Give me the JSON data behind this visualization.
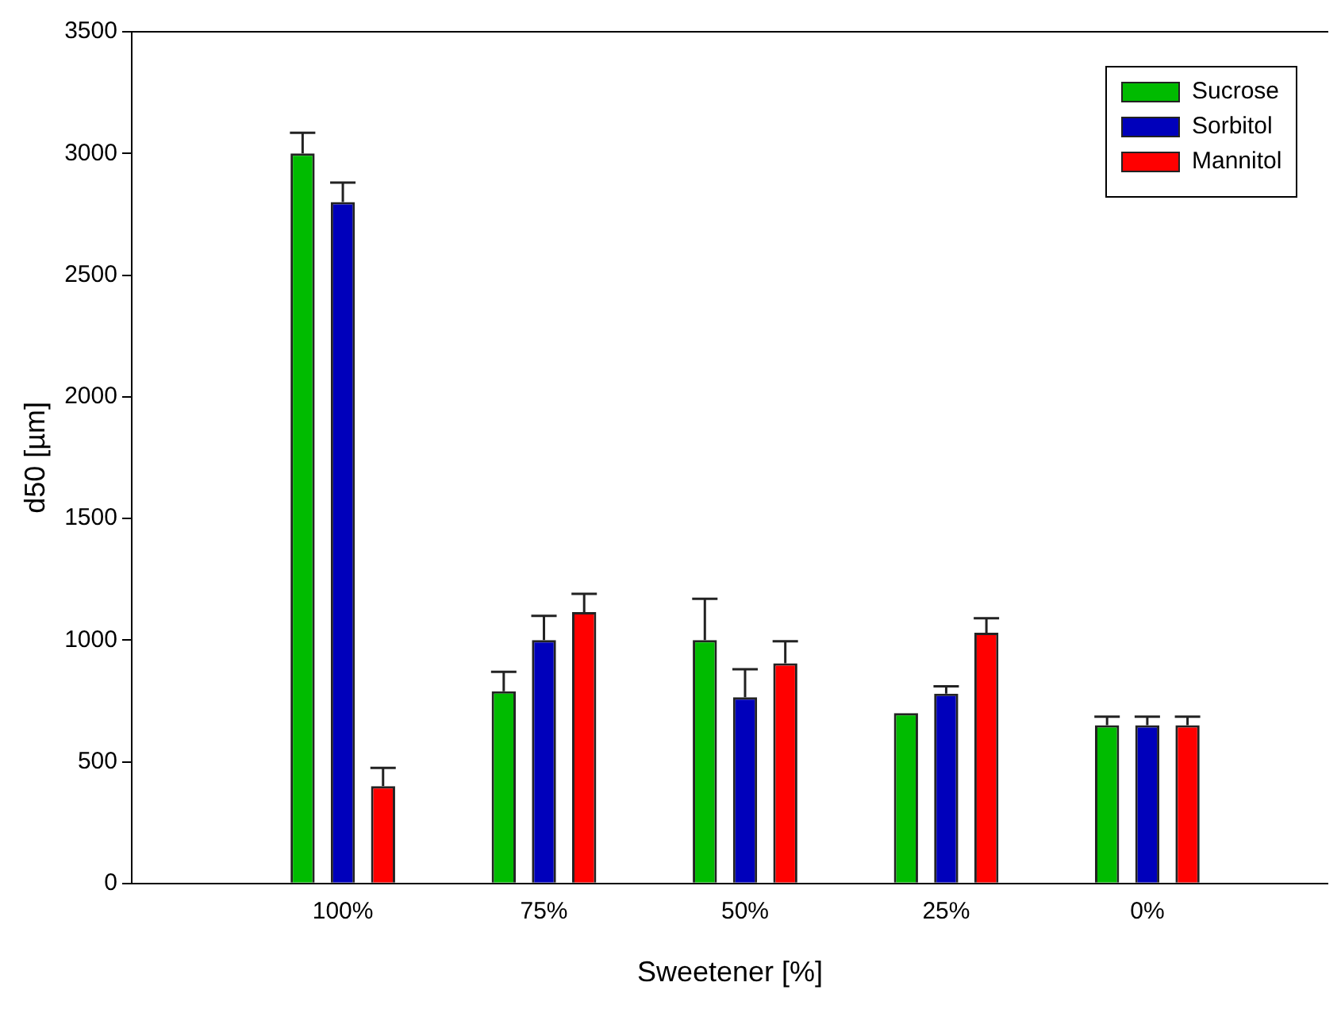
{
  "chart_data": {
    "type": "bar",
    "xlabel": "Sweetener [%]",
    "ylabel": "d50 [µm]",
    "categories": [
      "100%",
      "75%",
      "50%",
      "25%",
      "0%"
    ],
    "series": [
      {
        "name": "Sucrose",
        "color": "#00bb00",
        "values": [
          3000,
          790,
          1000,
          700,
          650
        ],
        "errors": [
          [
            3000,
            3085
          ],
          [
            790,
            870
          ],
          [
            1000,
            1170
          ],
          null,
          [
            650,
            685
          ]
        ]
      },
      {
        "name": "Sorbitol",
        "color": "#0000bb",
        "values": [
          2800,
          1000,
          765,
          780,
          650
        ],
        "errors": [
          [
            2800,
            2880
          ],
          [
            1000,
            1100
          ],
          [
            765,
            880
          ],
          [
            780,
            810
          ],
          [
            650,
            685
          ]
        ]
      },
      {
        "name": "Mannitol",
        "color": "#ff0000",
        "values": [
          400,
          1115,
          905,
          1030,
          650
        ],
        "errors": [
          [
            400,
            475
          ],
          [
            1115,
            1190
          ],
          [
            905,
            995
          ],
          [
            1030,
            1090
          ],
          [
            650,
            685
          ]
        ]
      }
    ],
    "ylim": [
      0,
      3500
    ],
    "yticks": [
      0,
      500,
      1000,
      1500,
      2000,
      2500,
      3000,
      3500
    ],
    "grid": false,
    "legend": "top right"
  }
}
